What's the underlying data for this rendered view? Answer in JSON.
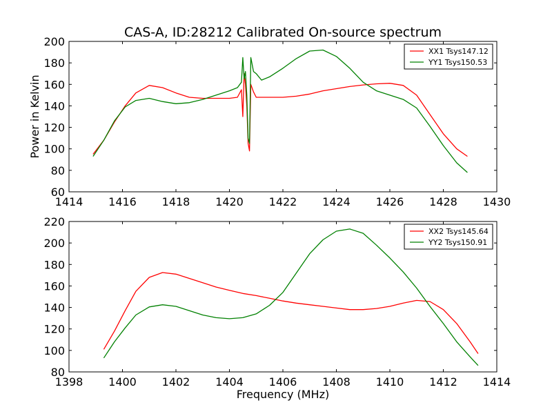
{
  "chart_data": [
    {
      "type": "line",
      "title": "CAS-A, ID:28212 Calibrated On-source spectrum",
      "xlabel": "",
      "ylabel": "Power in Kelvin",
      "xlim": [
        1414,
        1430
      ],
      "ylim": [
        60,
        200
      ],
      "xticks": [
        1414,
        1416,
        1418,
        1420,
        1422,
        1424,
        1426,
        1428,
        1430
      ],
      "yticks": [
        60,
        80,
        100,
        120,
        140,
        160,
        180,
        200
      ],
      "grid": false,
      "legend_position": "top-right",
      "series": [
        {
          "name": "XX1 Tsys147.12",
          "color": "#ff0000",
          "x": [
            1414.9,
            1415.3,
            1415.7,
            1416.1,
            1416.5,
            1417.0,
            1417.5,
            1418.0,
            1418.5,
            1419.0,
            1419.5,
            1420.0,
            1420.3,
            1420.45,
            1420.5,
            1420.55,
            1420.6,
            1420.65,
            1420.7,
            1420.75,
            1420.8,
            1420.9,
            1421.0,
            1421.5,
            1422.0,
            1422.5,
            1423.0,
            1423.5,
            1424.0,
            1424.5,
            1425.0,
            1425.5,
            1426.0,
            1426.5,
            1427.0,
            1427.5,
            1428.0,
            1428.5,
            1428.9
          ],
          "y": [
            95,
            108,
            125,
            140,
            152,
            159,
            157,
            152,
            148,
            147,
            147,
            147,
            148,
            155,
            130,
            170,
            160,
            140,
            105,
            98,
            160,
            153,
            148,
            148,
            148,
            149,
            151,
            154,
            156,
            158,
            159.5,
            160.5,
            161,
            159,
            150,
            132,
            114,
            100,
            93
          ]
        },
        {
          "name": "YY1 Tsys150.53",
          "color": "#008000",
          "x": [
            1414.9,
            1415.3,
            1415.7,
            1416.1,
            1416.5,
            1417.0,
            1417.5,
            1418.0,
            1418.5,
            1419.0,
            1419.5,
            1420.0,
            1420.3,
            1420.45,
            1420.5,
            1420.55,
            1420.6,
            1420.65,
            1420.7,
            1420.75,
            1420.8,
            1420.9,
            1421.0,
            1421.2,
            1421.5,
            1422.0,
            1422.5,
            1423.0,
            1423.5,
            1424.0,
            1424.5,
            1425.0,
            1425.5,
            1426.0,
            1426.5,
            1427.0,
            1427.5,
            1428.0,
            1428.5,
            1428.9
          ],
          "y": [
            93,
            108,
            126,
            139,
            145,
            147,
            144,
            142,
            143,
            146,
            150,
            154,
            157,
            162,
            185,
            165,
            172,
            150,
            110,
            105,
            185,
            172,
            170,
            164,
            167,
            175,
            184,
            191,
            192,
            186,
            175,
            162,
            154,
            150,
            146,
            138,
            121,
            103,
            87,
            78
          ]
        }
      ]
    },
    {
      "type": "line",
      "title": "",
      "xlabel": "Frequency (MHz)",
      "ylabel": "",
      "xlim": [
        1398,
        1414
      ],
      "ylim": [
        80,
        220
      ],
      "xticks": [
        1398,
        1400,
        1402,
        1404,
        1406,
        1408,
        1410,
        1412,
        1414
      ],
      "yticks": [
        80,
        100,
        120,
        140,
        160,
        180,
        200,
        220
      ],
      "grid": false,
      "legend_position": "top-right",
      "series": [
        {
          "name": "XX2 Tsys145.64",
          "color": "#ff0000",
          "x": [
            1399.3,
            1399.7,
            1400.1,
            1400.5,
            1401.0,
            1401.5,
            1402.0,
            1402.5,
            1403.0,
            1403.5,
            1404.0,
            1404.5,
            1405.0,
            1405.5,
            1406.0,
            1406.5,
            1407.0,
            1407.5,
            1408.0,
            1408.5,
            1409.0,
            1409.5,
            1410.0,
            1410.5,
            1411.0,
            1411.5,
            1412.0,
            1412.5,
            1413.0,
            1413.3
          ],
          "y": [
            101,
            118,
            137,
            155,
            168,
            172.5,
            171,
            167,
            163,
            159,
            156,
            153,
            151,
            148.5,
            146,
            144,
            142.5,
            141,
            139.5,
            138,
            138,
            139,
            141,
            144,
            146.5,
            145.5,
            138,
            125,
            108,
            97
          ]
        },
        {
          "name": "YY2 Tsys150.91",
          "color": "#008000",
          "x": [
            1399.3,
            1399.7,
            1400.1,
            1400.5,
            1401.0,
            1401.5,
            1402.0,
            1402.5,
            1403.0,
            1403.5,
            1404.0,
            1404.5,
            1405.0,
            1405.5,
            1406.0,
            1406.5,
            1407.0,
            1407.5,
            1408.0,
            1408.5,
            1409.0,
            1409.5,
            1410.0,
            1410.5,
            1411.0,
            1411.5,
            1412.0,
            1412.5,
            1413.0,
            1413.3
          ],
          "y": [
            93,
            108,
            121,
            133,
            140.5,
            142.5,
            141,
            137,
            133,
            130.5,
            129.5,
            130.5,
            134,
            142,
            154,
            172,
            190,
            203,
            211,
            213,
            209,
            198,
            186,
            173,
            158,
            141,
            125,
            108,
            94,
            86
          ]
        }
      ]
    }
  ]
}
